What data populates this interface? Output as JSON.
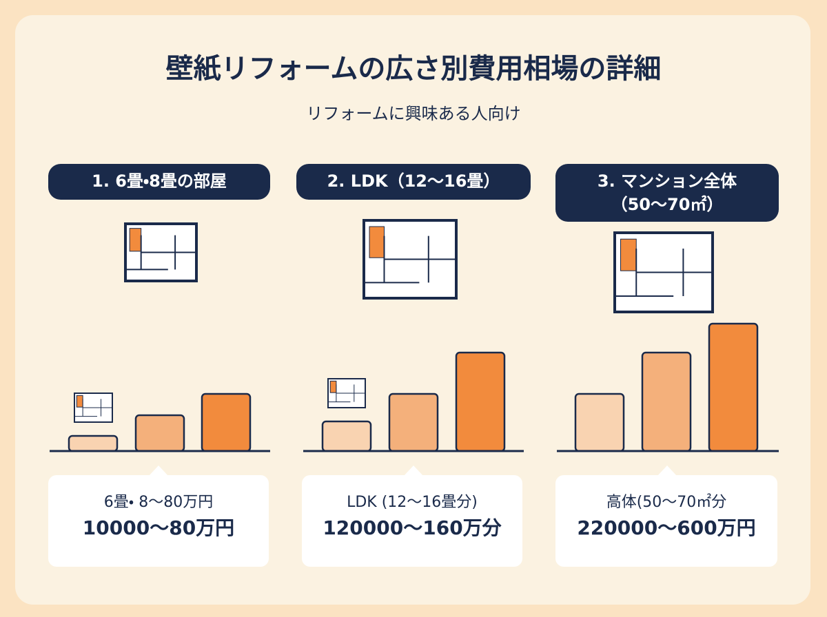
{
  "header": {
    "title": "壁紙リフォームの広さ別費用相場の詳細",
    "subtitle": "リフォームに興味ある人向け"
  },
  "panels": [
    {
      "heading": [
        "1. 6畳・8畳の部屋"
      ],
      "caption": [
        "6畳・ 8〜80万円",
        "10000〜80万円"
      ]
    },
    {
      "heading": [
        "2. LDK（12〜16畳）"
      ],
      "caption": [
        "LDK (12〜16畳分)",
        "120000〜160万分"
      ]
    },
    {
      "heading": [
        "3. マンション全体",
        "（50〜70㎡）"
      ],
      "caption": [
        "高体(50〜70㎡分",
        "220000〜600万円"
      ]
    }
  ]
}
